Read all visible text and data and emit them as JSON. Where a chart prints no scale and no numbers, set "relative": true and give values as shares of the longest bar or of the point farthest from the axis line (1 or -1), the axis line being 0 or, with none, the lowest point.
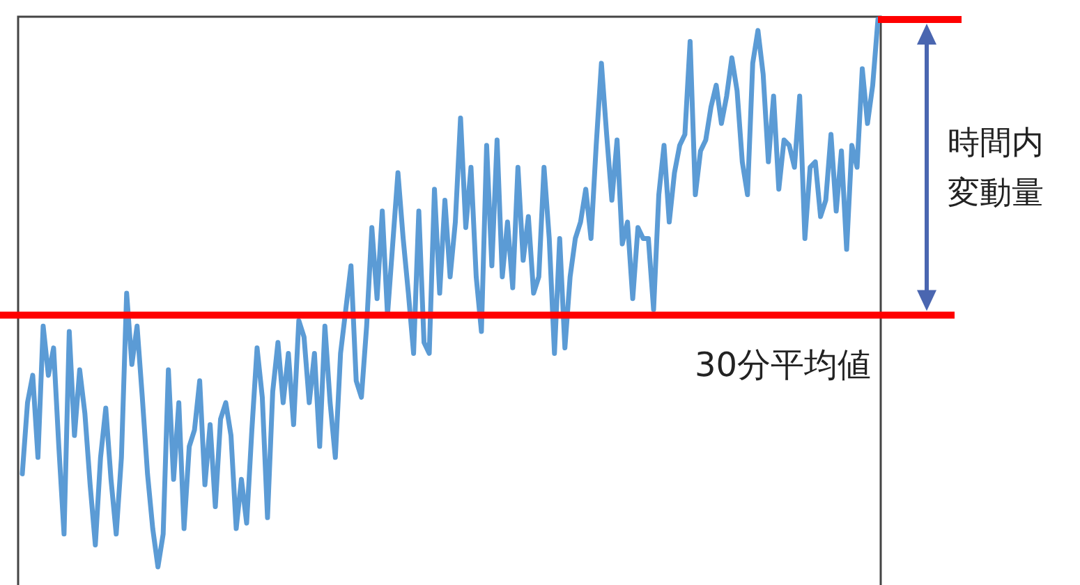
{
  "chart_data": {
    "type": "line",
    "relative": true,
    "categories": [
      null,
      null,
      null,
      null,
      null,
      null,
      null,
      null,
      null,
      null,
      null,
      null,
      null,
      null,
      null,
      null,
      null,
      null,
      null,
      null,
      null,
      null,
      null,
      null,
      null,
      null,
      null,
      null,
      null,
      null,
      null,
      null,
      null,
      null,
      null,
      null,
      null,
      null,
      null,
      null,
      null,
      null,
      null,
      null,
      null,
      null,
      null,
      null,
      null,
      null,
      null,
      null,
      null,
      null,
      null,
      null,
      null,
      null,
      null,
      null,
      null,
      null,
      null,
      null,
      null,
      null,
      null,
      null,
      null,
      null,
      null,
      null,
      null,
      null,
      null,
      null,
      null,
      null,
      null,
      null,
      null,
      null,
      null,
      null,
      null,
      null,
      null,
      null,
      null,
      null,
      null,
      null,
      null,
      null,
      null,
      null,
      null,
      null,
      null,
      null,
      null,
      null,
      null,
      null,
      null,
      null,
      null,
      null,
      null,
      null,
      null,
      null,
      null,
      null,
      null,
      null,
      null,
      null,
      null,
      null,
      null,
      null,
      null,
      null,
      null,
      null,
      null,
      null,
      null,
      null,
      null,
      null,
      null,
      null,
      null,
      null,
      null,
      null,
      null,
      null,
      null,
      null,
      null,
      null,
      null,
      null,
      null,
      null,
      null,
      null,
      null,
      null,
      null,
      null,
      null,
      null,
      null,
      null,
      null,
      null,
      null,
      null,
      null,
      null,
      null
    ],
    "series": [
      {
        "color": "#5b9bd5",
        "values": [
          0.17,
          0.3,
          0.35,
          0.2,
          0.44,
          0.35,
          0.4,
          0.22,
          0.06,
          0.43,
          0.24,
          0.36,
          0.28,
          0.15,
          0.04,
          0.2,
          0.29,
          0.16,
          0.06,
          0.2,
          0.5,
          0.37,
          0.44,
          0.31,
          0.17,
          0.07,
          0,
          0.06,
          0.36,
          0.16,
          0.3,
          0.07,
          0.22,
          0.25,
          0.34,
          0.15,
          0.26,
          0.11,
          0.27,
          0.3,
          0.24,
          0.07,
          0.16,
          0.08,
          0.25,
          0.4,
          0.31,
          0.09,
          0.32,
          0.41,
          0.3,
          0.39,
          0.26,
          0.45,
          0.42,
          0.3,
          0.39,
          0.22,
          0.44,
          0.3,
          0.2,
          0.39,
          0.47,
          0.55,
          0.34,
          0.31,
          0.44,
          0.62,
          0.49,
          0.65,
          0.46,
          0.59,
          0.72,
          0.6,
          0.5,
          0.39,
          0.65,
          0.41,
          0.39,
          0.69,
          0.5,
          0.67,
          0.53,
          0.63,
          0.82,
          0.62,
          0.73,
          0.53,
          0.43,
          0.77,
          0.55,
          0.78,
          0.53,
          0.63,
          0.51,
          0.73,
          0.56,
          0.64,
          0.5,
          0.53,
          0.73,
          0.6,
          0.39,
          0.6,
          0.4,
          0.53,
          0.6,
          0.63,
          0.69,
          0.6,
          0.77,
          0.92,
          0.79,
          0.67,
          0.78,
          0.59,
          0.63,
          0.49,
          0.62,
          0.6,
          0.6,
          0.47,
          0.68,
          0.77,
          0.63,
          0.72,
          0.77,
          0.79,
          0.96,
          0.68,
          0.76,
          0.78,
          0.84,
          0.88,
          0.81,
          0.86,
          0.93,
          0.87,
          0.74,
          0.68,
          0.92,
          0.98,
          0.9,
          0.74,
          0.86,
          0.69,
          0.78,
          0.77,
          0.73,
          0.86,
          0.6,
          0.73,
          0.74,
          0.64,
          0.67,
          0.79,
          0.65,
          0.76,
          0.58,
          0.77,
          0.73,
          0.91,
          0.81,
          0.88,
          1
        ]
      }
    ],
    "ref_lines": [
      {
        "axis": "y",
        "value": 0.46,
        "label": "30分平均値",
        "color": "#ff0000"
      }
    ],
    "annotations": [
      "時間内変動量"
    ]
  }
}
